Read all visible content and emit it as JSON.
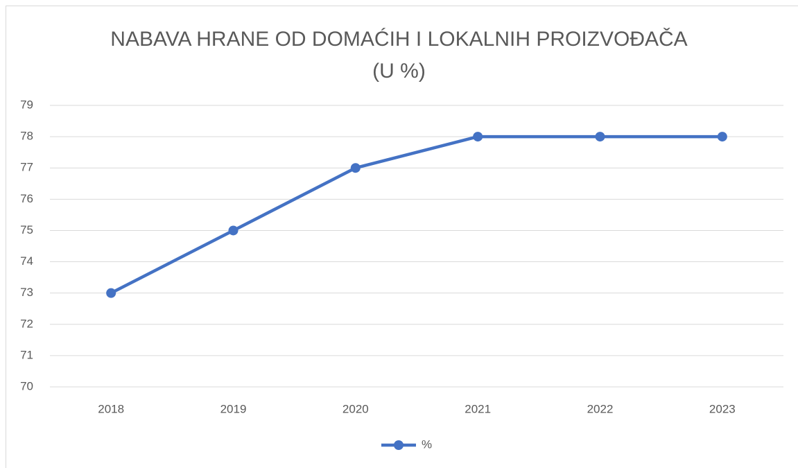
{
  "chart_data": {
    "type": "line",
    "title": "NABAVA HRANE OD DOMAĆIH I LOKALNIH PROIZVOĐAČA (U %)",
    "categories": [
      "2018",
      "2019",
      "2020",
      "2021",
      "2022",
      "2023"
    ],
    "series": [
      {
        "name": "%",
        "color": "#4472c4",
        "values": [
          73,
          75,
          77,
          78,
          78,
          78
        ]
      }
    ],
    "ylim": [
      70,
      79
    ],
    "yticks": [
      70,
      71,
      72,
      73,
      74,
      75,
      76,
      77,
      78,
      79
    ],
    "grid": true,
    "legend": "bottom"
  }
}
